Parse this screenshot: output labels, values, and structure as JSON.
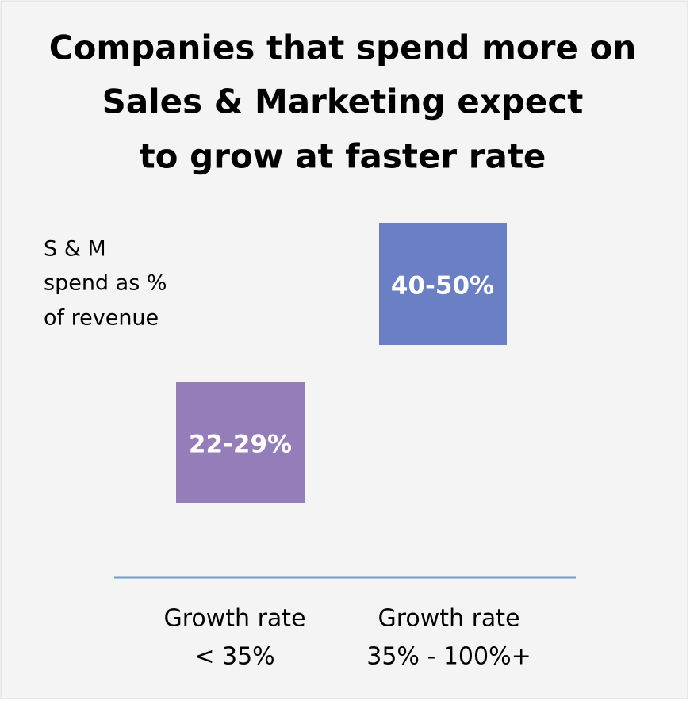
{
  "title": [
    "Companies that spend more on",
    "Sales & Marketing expect",
    "to grow at faster rate"
  ],
  "y_label": [
    "S & M",
    "spend as %",
    "of revenue"
  ],
  "boxes": [
    {
      "label": "22-29%",
      "category": [
        "Growth rate",
        "< 35%"
      ]
    },
    {
      "label": "40-50%",
      "category": [
        "Growth rate",
        "35% - 100%+"
      ]
    }
  ]
}
